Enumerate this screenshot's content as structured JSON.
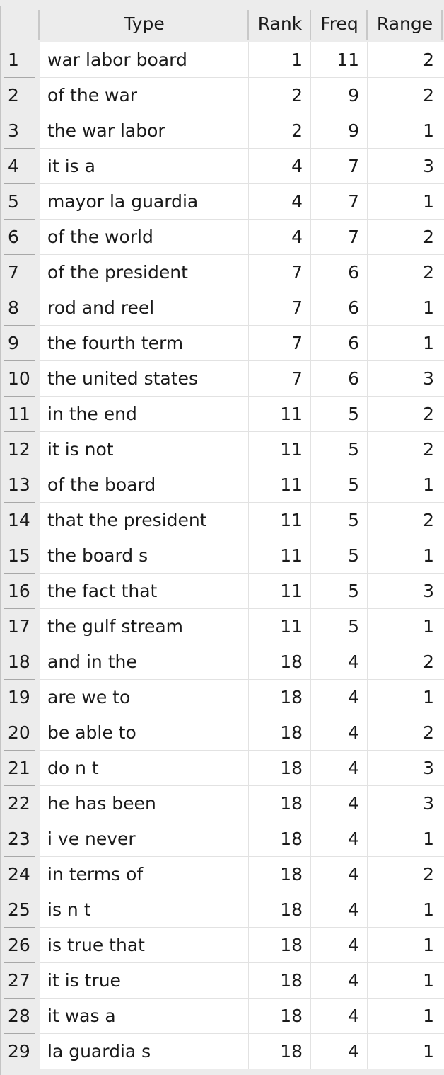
{
  "columns": {
    "index": "",
    "type": "Type",
    "rank": "Rank",
    "freq": "Freq",
    "range": "Range"
  },
  "rows": [
    {
      "n": "1",
      "type": "war labor board",
      "rank": "1",
      "freq": "11",
      "range": "2"
    },
    {
      "n": "2",
      "type": "of the war",
      "rank": "2",
      "freq": "9",
      "range": "2"
    },
    {
      "n": "3",
      "type": "the war labor",
      "rank": "2",
      "freq": "9",
      "range": "1"
    },
    {
      "n": "4",
      "type": "it is a",
      "rank": "4",
      "freq": "7",
      "range": "3"
    },
    {
      "n": "5",
      "type": "mayor la guardia",
      "rank": "4",
      "freq": "7",
      "range": "1"
    },
    {
      "n": "6",
      "type": "of the world",
      "rank": "4",
      "freq": "7",
      "range": "2"
    },
    {
      "n": "7",
      "type": "of the president",
      "rank": "7",
      "freq": "6",
      "range": "2"
    },
    {
      "n": "8",
      "type": "rod and reel",
      "rank": "7",
      "freq": "6",
      "range": "1"
    },
    {
      "n": "9",
      "type": "the fourth term",
      "rank": "7",
      "freq": "6",
      "range": "1"
    },
    {
      "n": "10",
      "type": "the united states",
      "rank": "7",
      "freq": "6",
      "range": "3"
    },
    {
      "n": "11",
      "type": "in the end",
      "rank": "11",
      "freq": "5",
      "range": "2"
    },
    {
      "n": "12",
      "type": "it is not",
      "rank": "11",
      "freq": "5",
      "range": "2"
    },
    {
      "n": "13",
      "type": "of the board",
      "rank": "11",
      "freq": "5",
      "range": "1"
    },
    {
      "n": "14",
      "type": "that the president",
      "rank": "11",
      "freq": "5",
      "range": "2"
    },
    {
      "n": "15",
      "type": "the board s",
      "rank": "11",
      "freq": "5",
      "range": "1"
    },
    {
      "n": "16",
      "type": "the fact that",
      "rank": "11",
      "freq": "5",
      "range": "3"
    },
    {
      "n": "17",
      "type": "the gulf stream",
      "rank": "11",
      "freq": "5",
      "range": "1"
    },
    {
      "n": "18",
      "type": "and in the",
      "rank": "18",
      "freq": "4",
      "range": "2"
    },
    {
      "n": "19",
      "type": "are we to",
      "rank": "18",
      "freq": "4",
      "range": "1"
    },
    {
      "n": "20",
      "type": "be able to",
      "rank": "18",
      "freq": "4",
      "range": "2"
    },
    {
      "n": "21",
      "type": "do n t",
      "rank": "18",
      "freq": "4",
      "range": "3"
    },
    {
      "n": "22",
      "type": "he has been",
      "rank": "18",
      "freq": "4",
      "range": "3"
    },
    {
      "n": "23",
      "type": "i ve never",
      "rank": "18",
      "freq": "4",
      "range": "1"
    },
    {
      "n": "24",
      "type": "in terms of",
      "rank": "18",
      "freq": "4",
      "range": "2"
    },
    {
      "n": "25",
      "type": "is n t",
      "rank": "18",
      "freq": "4",
      "range": "1"
    },
    {
      "n": "26",
      "type": "is true that",
      "rank": "18",
      "freq": "4",
      "range": "1"
    },
    {
      "n": "27",
      "type": "it is true",
      "rank": "18",
      "freq": "4",
      "range": "1"
    },
    {
      "n": "28",
      "type": "it was a",
      "rank": "18",
      "freq": "4",
      "range": "1"
    },
    {
      "n": "29",
      "type": "la guardia s",
      "rank": "18",
      "freq": "4",
      "range": "1"
    }
  ]
}
